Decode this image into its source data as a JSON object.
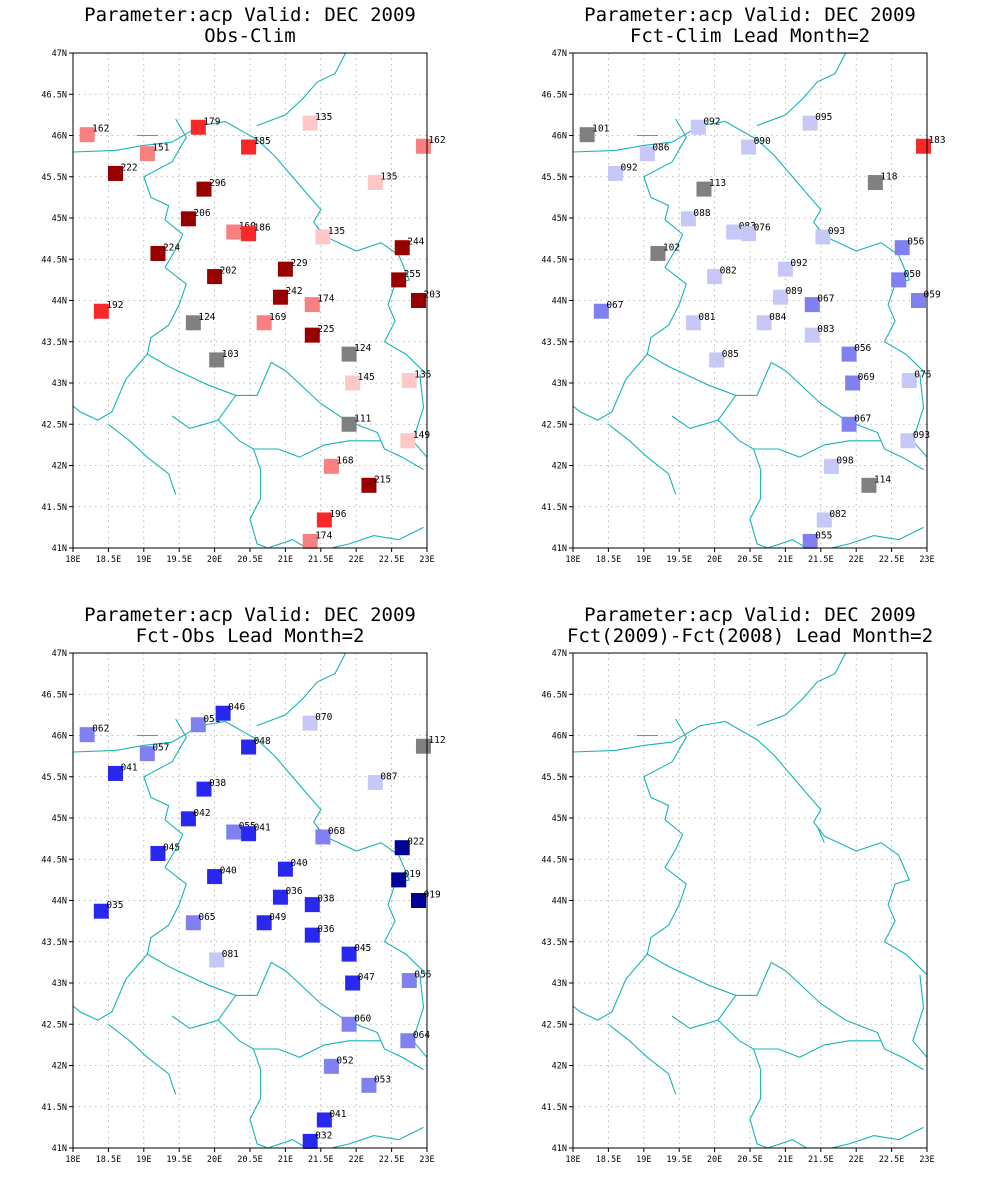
{
  "colors": {
    "coast": "#18b4b4",
    "grid": "#a8a8a8",
    "neutral": "#808080",
    "scale_pos": [
      "#ffc8c8",
      "#f88080",
      "#f82828",
      "#980000"
    ],
    "scale_neg": [
      "#c8c8f8",
      "#8080f0",
      "#2828f0",
      "#000098"
    ]
  },
  "map": {
    "lon_range": [
      18,
      23
    ],
    "lat_range": [
      41,
      47
    ],
    "x_ticks": [
      "18E",
      "18.5E",
      "19E",
      "19.5E",
      "20E",
      "20.5E",
      "21E",
      "21.5E",
      "22E",
      "22.5E",
      "23E"
    ],
    "y_ticks": [
      "41N",
      "41.5N",
      "42N",
      "42.5N",
      "43N",
      "43.5N",
      "44N",
      "44.5N",
      "45N",
      "45.5N",
      "46N",
      "46.5N",
      "47N"
    ]
  },
  "panels": [
    {
      "title1": "Parameter:acp Valid: DEC 2009",
      "title2": "Obs-Clim",
      "stations": [
        {
          "lon": 18.2,
          "lat": 46.01,
          "label": "162"
        },
        {
          "lon": 19.77,
          "lat": 46.1,
          "label": "179"
        },
        {
          "lon": 21.35,
          "lat": 46.15,
          "label": "135"
        },
        {
          "lon": 22.95,
          "lat": 45.87,
          "label": "162"
        },
        {
          "lon": 19.05,
          "lat": 45.78,
          "label": "151"
        },
        {
          "lon": 20.48,
          "lat": 45.86,
          "label": "185"
        },
        {
          "lon": 18.6,
          "lat": 45.54,
          "label": "222"
        },
        {
          "lon": 22.27,
          "lat": 45.43,
          "label": "135"
        },
        {
          "lon": 19.85,
          "lat": 45.35,
          "label": "296"
        },
        {
          "lon": 19.63,
          "lat": 44.99,
          "label": "206"
        },
        {
          "lon": 20.27,
          "lat": 44.83,
          "label": "160"
        },
        {
          "lon": 20.48,
          "lat": 44.81,
          "label": "186"
        },
        {
          "lon": 21.53,
          "lat": 44.77,
          "label": "135"
        },
        {
          "lon": 22.65,
          "lat": 44.64,
          "label": "244"
        },
        {
          "lon": 19.2,
          "lat": 44.57,
          "label": "224"
        },
        {
          "lon": 20.0,
          "lat": 44.29,
          "label": "202"
        },
        {
          "lon": 21.0,
          "lat": 44.38,
          "label": "229"
        },
        {
          "lon": 22.6,
          "lat": 44.25,
          "label": "255"
        },
        {
          "lon": 20.93,
          "lat": 44.04,
          "label": "242"
        },
        {
          "lon": 21.38,
          "lat": 43.95,
          "label": "174"
        },
        {
          "lon": 22.88,
          "lat": 44.0,
          "label": "203"
        },
        {
          "lon": 18.4,
          "lat": 43.87,
          "label": "192"
        },
        {
          "lon": 19.7,
          "lat": 43.73,
          "label": "124"
        },
        {
          "lon": 20.7,
          "lat": 43.73,
          "label": "169"
        },
        {
          "lon": 21.38,
          "lat": 43.58,
          "label": "225"
        },
        {
          "lon": 21.9,
          "lat": 43.35,
          "label": "124"
        },
        {
          "lon": 20.03,
          "lat": 43.28,
          "label": "103"
        },
        {
          "lon": 21.95,
          "lat": 43.0,
          "label": "145"
        },
        {
          "lon": 22.75,
          "lat": 43.03,
          "label": "135"
        },
        {
          "lon": 21.9,
          "lat": 42.5,
          "label": "111"
        },
        {
          "lon": 22.73,
          "lat": 42.3,
          "label": "149"
        },
        {
          "lon": 21.65,
          "lat": 41.99,
          "label": "168"
        },
        {
          "lon": 22.18,
          "lat": 41.76,
          "label": "215"
        },
        {
          "lon": 21.55,
          "lat": 41.34,
          "label": "196"
        },
        {
          "lon": 21.35,
          "lat": 41.08,
          "label": "174"
        }
      ]
    },
    {
      "title1": "Parameter:acp Valid: DEC 2009",
      "title2": "Fct-Clim Lead Month=2",
      "stations": [
        {
          "lon": 18.2,
          "lat": 46.01,
          "label": "101"
        },
        {
          "lon": 19.77,
          "lat": 46.1,
          "label": "092"
        },
        {
          "lon": 21.35,
          "lat": 46.15,
          "label": "095"
        },
        {
          "lon": 22.95,
          "lat": 45.87,
          "label": "183"
        },
        {
          "lon": 19.05,
          "lat": 45.78,
          "label": "086"
        },
        {
          "lon": 20.48,
          "lat": 45.86,
          "label": "090"
        },
        {
          "lon": 18.6,
          "lat": 45.54,
          "label": "092"
        },
        {
          "lon": 22.27,
          "lat": 45.43,
          "label": "118"
        },
        {
          "lon": 19.85,
          "lat": 45.35,
          "label": "113"
        },
        {
          "lon": 19.63,
          "lat": 44.99,
          "label": "088"
        },
        {
          "lon": 20.27,
          "lat": 44.83,
          "label": "083"
        },
        {
          "lon": 20.48,
          "lat": 44.81,
          "label": "076"
        },
        {
          "lon": 21.53,
          "lat": 44.77,
          "label": "093"
        },
        {
          "lon": 22.65,
          "lat": 44.64,
          "label": "056"
        },
        {
          "lon": 19.2,
          "lat": 44.57,
          "label": "102"
        },
        {
          "lon": 20.0,
          "lat": 44.29,
          "label": "082"
        },
        {
          "lon": 21.0,
          "lat": 44.38,
          "label": "092"
        },
        {
          "lon": 22.6,
          "lat": 44.25,
          "label": "050"
        },
        {
          "lon": 20.93,
          "lat": 44.04,
          "label": "089"
        },
        {
          "lon": 21.38,
          "lat": 43.95,
          "label": "067"
        },
        {
          "lon": 22.88,
          "lat": 44.0,
          "label": "059"
        },
        {
          "lon": 18.4,
          "lat": 43.87,
          "label": "067"
        },
        {
          "lon": 19.7,
          "lat": 43.73,
          "label": "081"
        },
        {
          "lon": 20.7,
          "lat": 43.73,
          "label": "084"
        },
        {
          "lon": 21.38,
          "lat": 43.58,
          "label": "083"
        },
        {
          "lon": 21.9,
          "lat": 43.35,
          "label": "056"
        },
        {
          "lon": 20.03,
          "lat": 43.28,
          "label": "085"
        },
        {
          "lon": 21.95,
          "lat": 43.0,
          "label": "069"
        },
        {
          "lon": 22.75,
          "lat": 43.03,
          "label": "075"
        },
        {
          "lon": 21.9,
          "lat": 42.5,
          "label": "067"
        },
        {
          "lon": 22.73,
          "lat": 42.3,
          "label": "093"
        },
        {
          "lon": 21.65,
          "lat": 41.99,
          "label": "098"
        },
        {
          "lon": 22.18,
          "lat": 41.76,
          "label": "114"
        },
        {
          "lon": 21.55,
          "lat": 41.34,
          "label": "082"
        },
        {
          "lon": 21.35,
          "lat": 41.08,
          "label": "055"
        }
      ]
    },
    {
      "title1": "Parameter:acp Valid: DEC 2009",
      "title2": "Fct-Obs Lead Month=2",
      "stations": [
        {
          "lon": 18.2,
          "lat": 46.01,
          "label": "062"
        },
        {
          "lon": 19.77,
          "lat": 46.13,
          "label": "051"
        },
        {
          "lon": 20.12,
          "lat": 46.27,
          "label": "046"
        },
        {
          "lon": 21.35,
          "lat": 46.15,
          "label": "070"
        },
        {
          "lon": 22.95,
          "lat": 45.87,
          "label": "112"
        },
        {
          "lon": 19.05,
          "lat": 45.78,
          "label": "057"
        },
        {
          "lon": 20.48,
          "lat": 45.86,
          "label": "048"
        },
        {
          "lon": 18.6,
          "lat": 45.54,
          "label": "041"
        },
        {
          "lon": 22.27,
          "lat": 45.43,
          "label": "087"
        },
        {
          "lon": 19.85,
          "lat": 45.35,
          "label": "038"
        },
        {
          "lon": 19.63,
          "lat": 44.99,
          "label": "042"
        },
        {
          "lon": 20.27,
          "lat": 44.83,
          "label": "055"
        },
        {
          "lon": 20.48,
          "lat": 44.81,
          "label": "041"
        },
        {
          "lon": 21.53,
          "lat": 44.77,
          "label": "068"
        },
        {
          "lon": 22.65,
          "lat": 44.64,
          "label": "022"
        },
        {
          "lon": 19.2,
          "lat": 44.57,
          "label": "045"
        },
        {
          "lon": 20.0,
          "lat": 44.29,
          "label": "040"
        },
        {
          "lon": 21.0,
          "lat": 44.38,
          "label": "040"
        },
        {
          "lon": 22.6,
          "lat": 44.25,
          "label": "019"
        },
        {
          "lon": 20.93,
          "lat": 44.04,
          "label": "036"
        },
        {
          "lon": 21.38,
          "lat": 43.95,
          "label": "038"
        },
        {
          "lon": 22.88,
          "lat": 44.0,
          "label": "019"
        },
        {
          "lon": 18.4,
          "lat": 43.87,
          "label": "035"
        },
        {
          "lon": 19.7,
          "lat": 43.73,
          "label": "065"
        },
        {
          "lon": 20.7,
          "lat": 43.73,
          "label": "049"
        },
        {
          "lon": 21.38,
          "lat": 43.58,
          "label": "036"
        },
        {
          "lon": 21.9,
          "lat": 43.35,
          "label": "045"
        },
        {
          "lon": 20.03,
          "lat": 43.28,
          "label": "081"
        },
        {
          "lon": 21.95,
          "lat": 43.0,
          "label": "047"
        },
        {
          "lon": 22.75,
          "lat": 43.03,
          "label": "055"
        },
        {
          "lon": 21.9,
          "lat": 42.5,
          "label": "060"
        },
        {
          "lon": 22.73,
          "lat": 42.3,
          "label": "064"
        },
        {
          "lon": 21.65,
          "lat": 41.99,
          "label": "052"
        },
        {
          "lon": 22.18,
          "lat": 41.76,
          "label": "053"
        },
        {
          "lon": 21.55,
          "lat": 41.34,
          "label": "041"
        },
        {
          "lon": 21.35,
          "lat": 41.08,
          "label": "032"
        }
      ]
    },
    {
      "title1": "Parameter:acp Valid: DEC 2009",
      "title2": "Fct(2009)-Fct(2008) Lead Month=2",
      "stations": []
    }
  ]
}
